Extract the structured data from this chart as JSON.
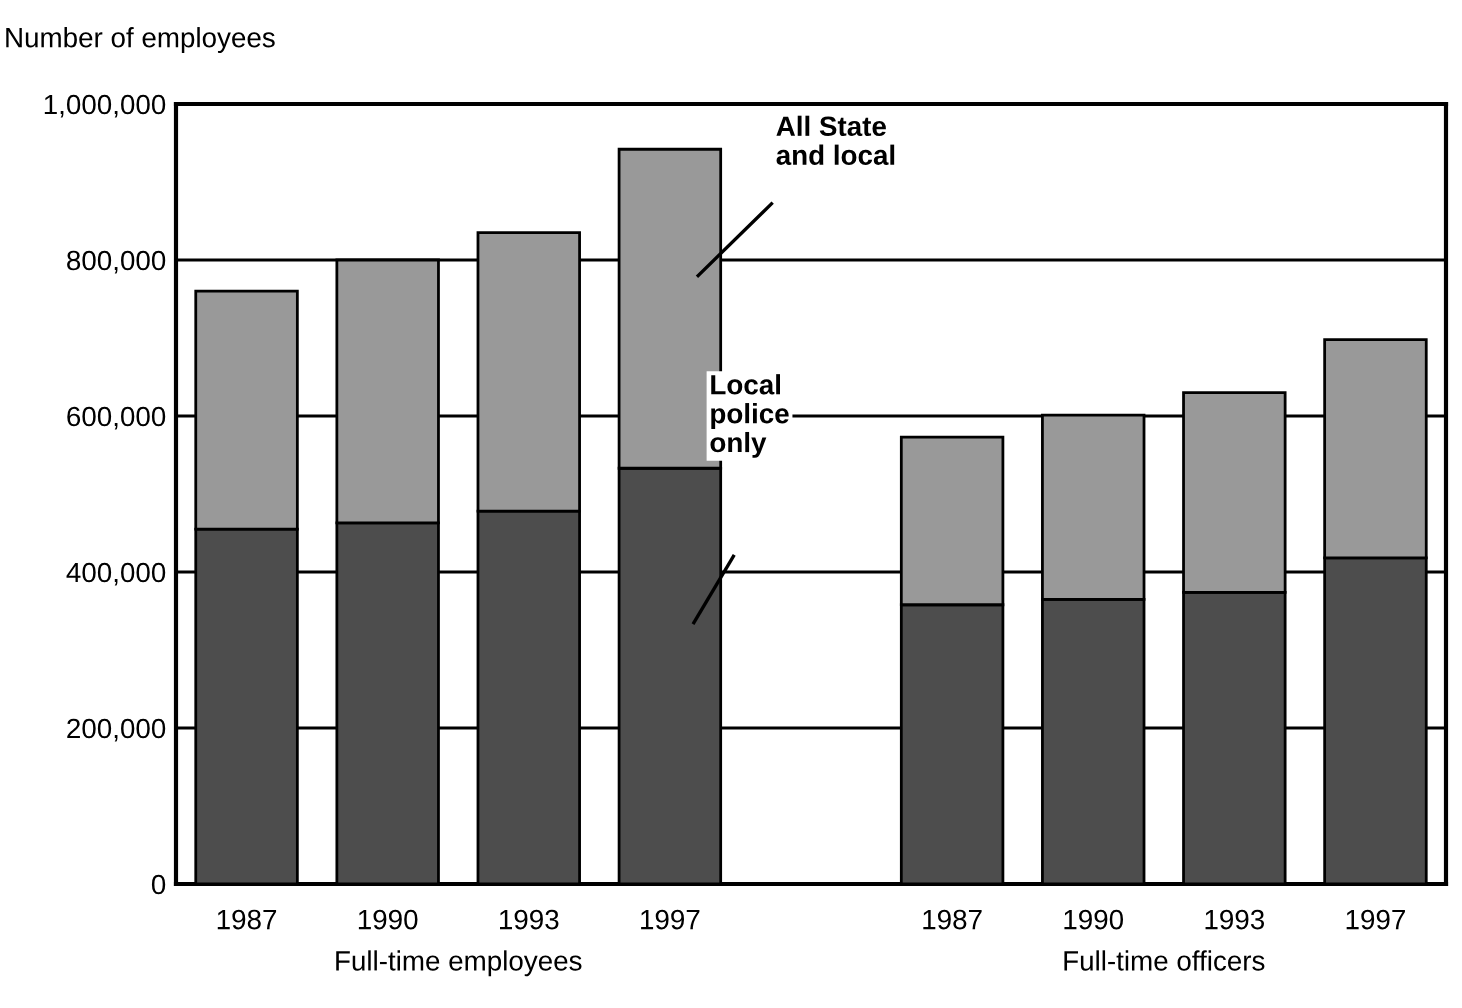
{
  "chart_data": {
    "type": "bar",
    "stacked": true,
    "ylabel": "Number of employees",
    "categories": [
      "1987",
      "1990",
      "1993",
      "1997",
      null,
      "1987",
      "1990",
      "1993",
      "1997"
    ],
    "series": [
      {
        "name": "Local police only",
        "color": "#4d4d4d",
        "values": [
          455000,
          463000,
          478000,
          533000,
          null,
          358000,
          365000,
          374000,
          418000
        ]
      },
      {
        "name": "All State and local",
        "color": "#999999",
        "values": [
          305000,
          337000,
          357000,
          409000,
          null,
          215000,
          236000,
          256000,
          280000
        ]
      }
    ],
    "ylim": [
      0,
      1000000
    ],
    "yticks": [
      {
        "value": 0,
        "label": "0"
      },
      {
        "value": 200000,
        "label": "200,000"
      },
      {
        "value": 400000,
        "label": "400,000"
      },
      {
        "value": 600000,
        "label": "600,000"
      },
      {
        "value": 800000,
        "label": "800,000"
      },
      {
        "value": 1000000,
        "label": "1,000,000"
      }
    ],
    "grid": "y",
    "legend": "center",
    "annotations": [
      "Full-time employees",
      "Full-time officers"
    ]
  }
}
